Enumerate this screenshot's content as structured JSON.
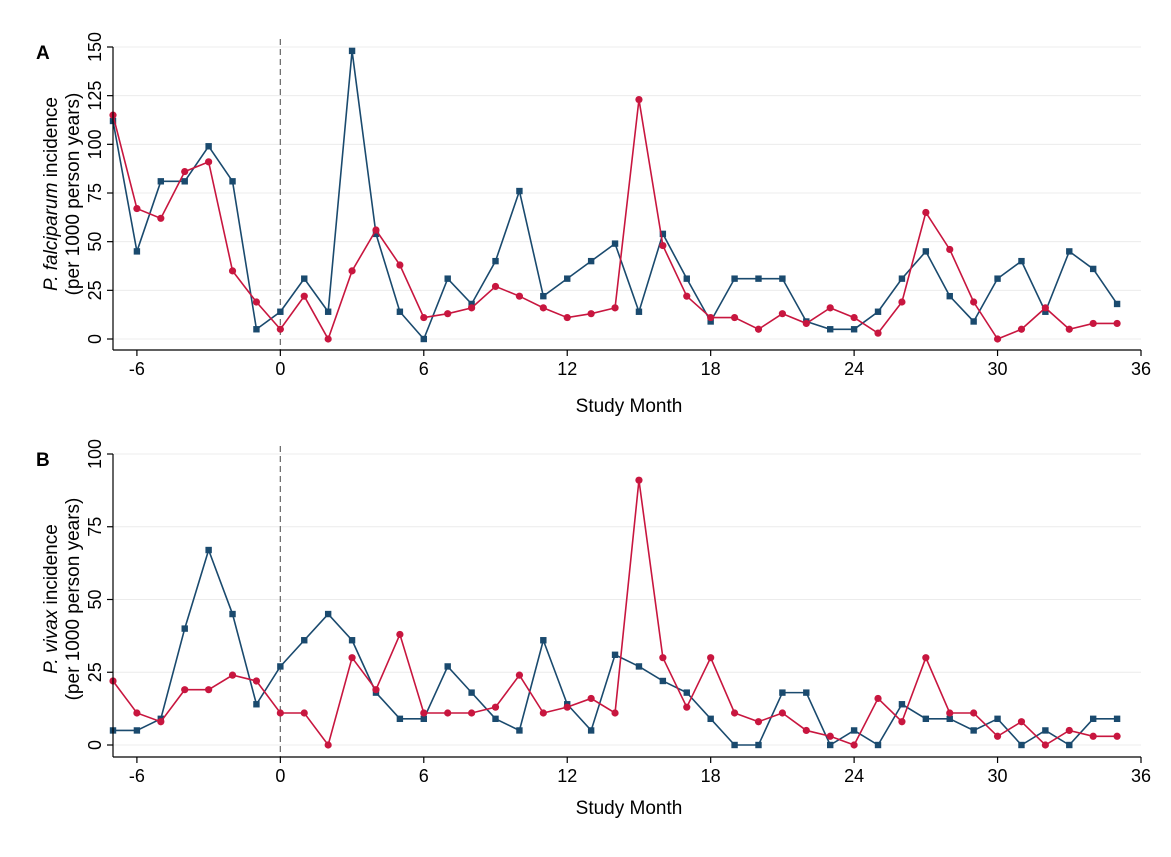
{
  "colors": {
    "series1": "#1a4a6e",
    "series2": "#c8163f",
    "grid": "#ececec",
    "axis": "#000000",
    "refline": "#707070"
  },
  "chart_data": [
    {
      "type": "line",
      "panel_label": "A",
      "xlabel": "Study Month",
      "ylabel_italic": "P. falciparum",
      "ylabel_rest": " incidence",
      "ylabel_line2": "(per 1000 person years)",
      "xlim": [
        -7,
        36
      ],
      "ylim": [
        0,
        150
      ],
      "xticks": [
        -6,
        0,
        6,
        12,
        18,
        24,
        30,
        36
      ],
      "yticks": [
        0,
        25,
        50,
        75,
        100,
        125,
        150
      ],
      "grid": true,
      "reference_x": 0,
      "x": [
        -7,
        -6,
        -5,
        -4,
        -3,
        -2,
        -1,
        0,
        1,
        2,
        3,
        4,
        5,
        6,
        7,
        8,
        9,
        10,
        11,
        12,
        13,
        14,
        15,
        16,
        17,
        18,
        19,
        20,
        21,
        22,
        23,
        24,
        25,
        26,
        27,
        28,
        29,
        30,
        31,
        32,
        33,
        34,
        35
      ],
      "series": [
        {
          "marker": "square",
          "color": "#1a4a6e",
          "values": [
            112,
            45,
            81,
            81,
            99,
            81,
            5,
            14,
            31,
            14,
            148,
            54,
            14,
            0,
            31,
            18,
            40,
            76,
            22,
            31,
            40,
            49,
            14,
            54,
            31,
            9,
            31,
            31,
            31,
            9,
            5,
            5,
            14,
            31,
            45,
            22,
            9,
            31,
            40,
            14,
            45,
            36,
            18
          ]
        },
        {
          "marker": "circle",
          "color": "#c8163f",
          "values": [
            115,
            67,
            62,
            86,
            91,
            35,
            19,
            5,
            22,
            0,
            35,
            56,
            38,
            11,
            13,
            16,
            27,
            22,
            16,
            11,
            13,
            16,
            123,
            48,
            22,
            11,
            11,
            5,
            13,
            8,
            16,
            11,
            3,
            19,
            65,
            46,
            19,
            0,
            5,
            16,
            5,
            8,
            8
          ]
        }
      ]
    },
    {
      "type": "line",
      "panel_label": "B",
      "xlabel": "Study Month",
      "ylabel_italic": "P. vivax",
      "ylabel_rest": " incidence",
      "ylabel_line2": "(per 1000 person years)",
      "xlim": [
        -7,
        36
      ],
      "ylim": [
        0,
        100
      ],
      "xticks": [
        -6,
        0,
        6,
        12,
        18,
        24,
        30,
        36
      ],
      "yticks": [
        0,
        25,
        50,
        75,
        100
      ],
      "grid": true,
      "reference_x": 0,
      "x": [
        -7,
        -6,
        -5,
        -4,
        -3,
        -2,
        -1,
        0,
        1,
        2,
        3,
        4,
        5,
        6,
        7,
        8,
        9,
        10,
        11,
        12,
        13,
        14,
        15,
        16,
        17,
        18,
        19,
        20,
        21,
        22,
        23,
        24,
        25,
        26,
        27,
        28,
        29,
        30,
        31,
        32,
        33,
        34,
        35
      ],
      "series": [
        {
          "marker": "square",
          "color": "#1a4a6e",
          "values": [
            5,
            5,
            9,
            40,
            67,
            45,
            14,
            27,
            36,
            45,
            36,
            18,
            9,
            9,
            27,
            18,
            9,
            5,
            36,
            14,
            5,
            31,
            27,
            22,
            18,
            9,
            0,
            0,
            18,
            18,
            0,
            5,
            0,
            14,
            9,
            9,
            5,
            9,
            0,
            5,
            0,
            9,
            9
          ]
        },
        {
          "marker": "circle",
          "color": "#c8163f",
          "values": [
            22,
            11,
            8,
            19,
            19,
            24,
            22,
            11,
            11,
            0,
            30,
            19,
            38,
            11,
            11,
            11,
            13,
            24,
            11,
            13,
            16,
            11,
            91,
            30,
            13,
            30,
            11,
            8,
            11,
            5,
            3,
            0,
            16,
            8,
            30,
            11,
            11,
            3,
            8,
            0,
            5,
            3,
            3
          ]
        }
      ]
    }
  ]
}
